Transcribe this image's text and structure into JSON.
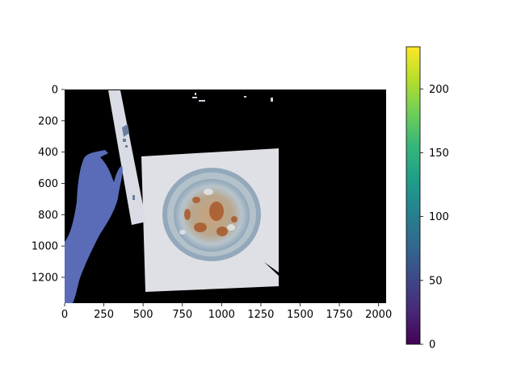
{
  "figure": {
    "background": "#ffffff"
  },
  "image_panel": {
    "description_colors": {
      "background": "#000000",
      "paper": "#dcdde3",
      "dish_rim": "#9fb4c4",
      "dish_inner": "#b7c3cb",
      "stain_brown": "#a05a2a",
      "hand": "#5a6db5",
      "strip": "#d8dbe3"
    },
    "x_ticks": [
      "0",
      "250",
      "500",
      "750",
      "1000",
      "1250",
      "1500",
      "1750",
      "2000"
    ],
    "y_ticks": [
      "0",
      "200",
      "400",
      "600",
      "800",
      "1000",
      "1200"
    ]
  },
  "colorbar": {
    "colormap": "viridis",
    "colors": [
      "#440154",
      "#482878",
      "#3e4989",
      "#31688e",
      "#26828e",
      "#1f9e89",
      "#35b779",
      "#6ece58",
      "#b5de2b",
      "#fde725"
    ],
    "ticks": [
      "0",
      "50",
      "100",
      "150",
      "200"
    ]
  },
  "chart_data": {
    "type": "heatmap",
    "title": "",
    "xlabel": "",
    "ylabel": "",
    "xlim": [
      0,
      2048
    ],
    "ylim": [
      1365,
      0
    ],
    "x_ticks": [
      0,
      250,
      500,
      750,
      1000,
      1250,
      1500,
      1750,
      2000
    ],
    "y_ticks": [
      0,
      200,
      400,
      600,
      800,
      1000,
      1200
    ],
    "colorbar": {
      "cmap": "viridis",
      "range": [
        0,
        233
      ],
      "ticks": [
        0,
        50,
        100,
        150,
        200
      ]
    },
    "grid": false
  }
}
